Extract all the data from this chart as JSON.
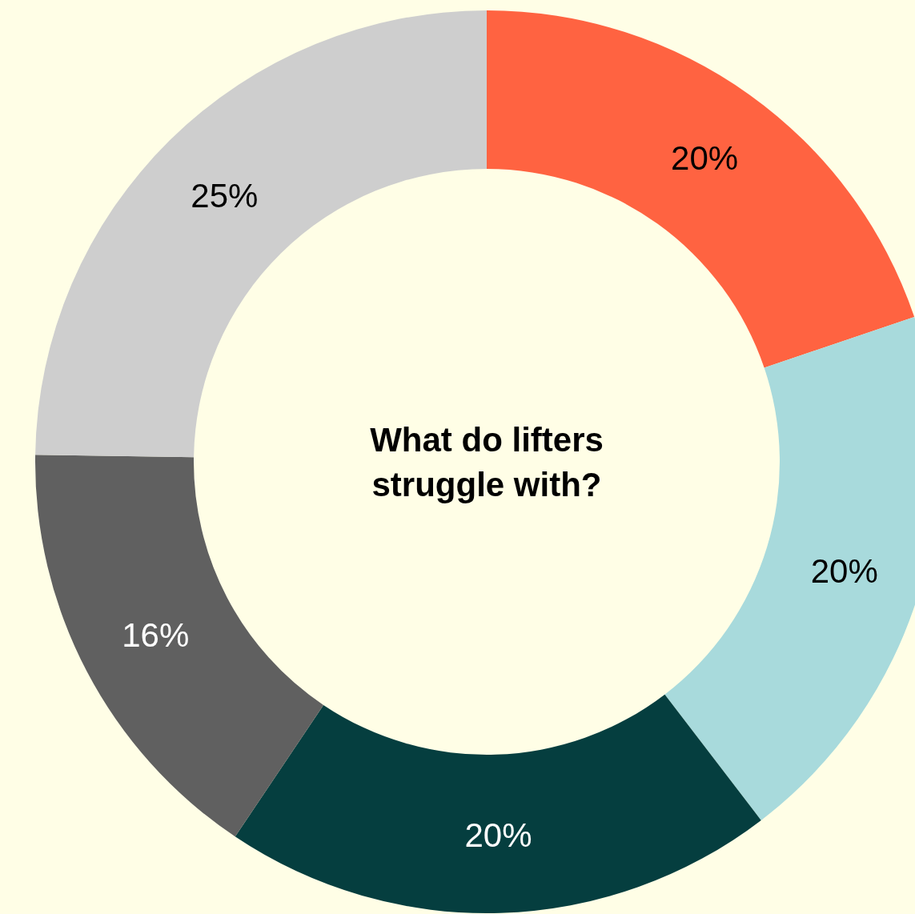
{
  "chart_data": {
    "type": "donut",
    "title": "What do lifters struggle with?",
    "categories": [
      null,
      null,
      null,
      null,
      null
    ],
    "values": [
      20,
      20,
      20,
      16,
      25
    ],
    "colors": [
      "#ff6341",
      "#a8dadc",
      "#053e3f",
      "#606060",
      "#cecece"
    ],
    "value_labels": [
      "20%",
      "20%",
      "20%",
      "16%",
      "25%"
    ]
  }
}
